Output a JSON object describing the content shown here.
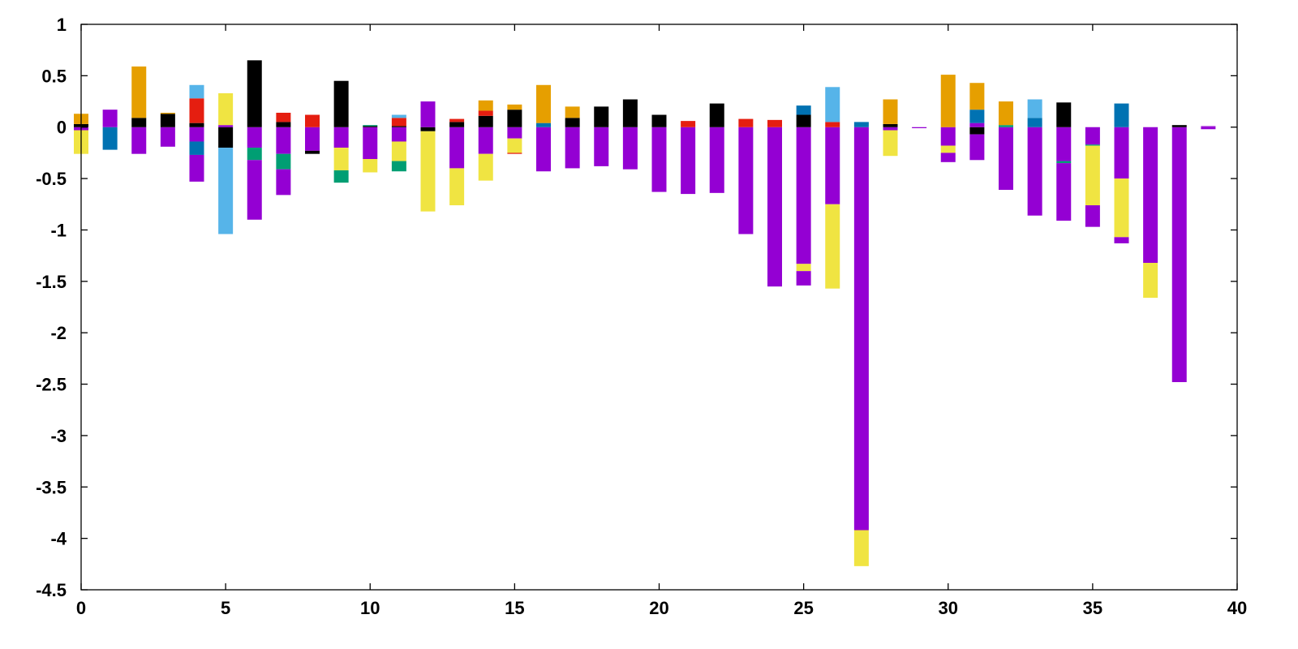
{
  "chart_data": {
    "type": "bar",
    "stacked": true,
    "title": "",
    "xlabel": "",
    "ylabel": "",
    "xlim": [
      0,
      40
    ],
    "ylim": [
      -4.5,
      1
    ],
    "grid": false,
    "legend": "none",
    "x_ticks": [
      "0",
      "5",
      "10",
      "15",
      "20",
      "25",
      "30",
      "35",
      "40"
    ],
    "y_ticks": [
      "1",
      "0.5",
      "0",
      "-0.5",
      "-1",
      "-1.5",
      "-2",
      "-2.5",
      "-3",
      "-3.5",
      "-4",
      "-4.5"
    ],
    "x_tick_values": [
      0,
      5,
      10,
      15,
      20,
      25,
      30,
      35,
      40
    ],
    "y_tick_values": [
      1,
      0.5,
      0,
      -0.5,
      -1,
      -1.5,
      -2,
      -2.5,
      -3,
      -3.5,
      -4,
      -4.5
    ],
    "colors": {
      "purple": "#9400d3",
      "teal": "#009e73",
      "skyblue": "#56b4e9",
      "orange": "#e69f00",
      "yellow": "#f0e442",
      "blue": "#0072b2",
      "red": "#e51e10",
      "black": "#000000"
    },
    "bars": [
      {
        "x": 0,
        "segments": [
          [
            "purple",
            -0.03,
            0
          ],
          [
            "yellow",
            -0.26,
            -0.03
          ],
          [
            "black",
            0,
            0.03
          ],
          [
            "orange",
            0.03,
            0.13
          ]
        ]
      },
      {
        "x": 1,
        "segments": [
          [
            "blue",
            -0.22,
            0
          ],
          [
            "purple",
            0,
            0.17
          ]
        ]
      },
      {
        "x": 2,
        "segments": [
          [
            "purple",
            -0.26,
            0
          ],
          [
            "black",
            0,
            0.09
          ],
          [
            "orange",
            0.09,
            0.59
          ]
        ]
      },
      {
        "x": 3,
        "segments": [
          [
            "purple",
            -0.19,
            0
          ],
          [
            "black",
            0,
            0.13
          ],
          [
            "orange",
            0.13,
            0.14
          ]
        ]
      },
      {
        "x": 4,
        "segments": [
          [
            "purple",
            -0.14,
            0
          ],
          [
            "blue",
            -0.27,
            -0.14
          ],
          [
            "purple",
            -0.53,
            -0.27
          ],
          [
            "black",
            0,
            0.04
          ],
          [
            "red",
            0.04,
            0.28
          ],
          [
            "skyblue",
            0.28,
            0.41
          ]
        ]
      },
      {
        "x": 5,
        "segments": [
          [
            "black",
            -0.2,
            0
          ],
          [
            "skyblue",
            -1.04,
            -0.2
          ],
          [
            "purple",
            0,
            0.02
          ],
          [
            "yellow",
            0.02,
            0.33
          ]
        ]
      },
      {
        "x": 6,
        "segments": [
          [
            "purple",
            -0.2,
            0
          ],
          [
            "teal",
            -0.32,
            -0.2
          ],
          [
            "purple",
            -0.9,
            -0.32
          ],
          [
            "black",
            0,
            0.65
          ]
        ]
      },
      {
        "x": 7,
        "segments": [
          [
            "purple",
            -0.26,
            0
          ],
          [
            "teal",
            -0.41,
            -0.26
          ],
          [
            "purple",
            -0.66,
            -0.41
          ],
          [
            "black",
            0,
            0.05
          ],
          [
            "red",
            0.05,
            0.14
          ]
        ]
      },
      {
        "x": 8,
        "segments": [
          [
            "purple",
            -0.23,
            0
          ],
          [
            "black",
            -0.26,
            -0.23
          ],
          [
            "red",
            0,
            0.12
          ]
        ]
      },
      {
        "x": 9,
        "segments": [
          [
            "purple",
            -0.2,
            0
          ],
          [
            "yellow",
            -0.42,
            -0.2
          ],
          [
            "teal",
            -0.54,
            -0.42
          ],
          [
            "black",
            0,
            0.45
          ]
        ]
      },
      {
        "x": 10,
        "segments": [
          [
            "purple",
            -0.31,
            0
          ],
          [
            "yellow",
            -0.44,
            -0.31
          ],
          [
            "black",
            0,
            0.01
          ],
          [
            "teal",
            0.01,
            0.02
          ]
        ]
      },
      {
        "x": 11,
        "segments": [
          [
            "purple",
            -0.14,
            0
          ],
          [
            "yellow",
            -0.33,
            -0.14
          ],
          [
            "teal",
            -0.43,
            -0.33
          ],
          [
            "black",
            0,
            0.01
          ],
          [
            "red",
            0.01,
            0.09
          ],
          [
            "skyblue",
            0.09,
            0.12
          ]
        ]
      },
      {
        "x": 12,
        "segments": [
          [
            "black",
            -0.04,
            0
          ],
          [
            "yellow",
            -0.82,
            -0.04
          ],
          [
            "purple",
            0,
            0.25
          ]
        ]
      },
      {
        "x": 13,
        "segments": [
          [
            "purple",
            -0.4,
            0
          ],
          [
            "yellow",
            -0.76,
            -0.4
          ],
          [
            "black",
            0,
            0.05
          ],
          [
            "red",
            0.05,
            0.08
          ]
        ]
      },
      {
        "x": 14,
        "segments": [
          [
            "purple",
            -0.26,
            0
          ],
          [
            "yellow",
            -0.52,
            -0.26
          ],
          [
            "black",
            0,
            0.11
          ],
          [
            "red",
            0.11,
            0.16
          ],
          [
            "orange",
            0.16,
            0.26
          ]
        ]
      },
      {
        "x": 15,
        "segments": [
          [
            "purple",
            -0.11,
            0
          ],
          [
            "yellow",
            -0.25,
            -0.11
          ],
          [
            "red",
            -0.26,
            -0.25
          ],
          [
            "black",
            0,
            0.17
          ],
          [
            "orange",
            0.17,
            0.22
          ]
        ]
      },
      {
        "x": 16,
        "segments": [
          [
            "purple",
            -0.43,
            0
          ],
          [
            "blue",
            0,
            0.04
          ],
          [
            "orange",
            0.04,
            0.41
          ]
        ]
      },
      {
        "x": 17,
        "segments": [
          [
            "purple",
            -0.4,
            0
          ],
          [
            "black",
            0,
            0.09
          ],
          [
            "orange",
            0.09,
            0.2
          ]
        ]
      },
      {
        "x": 18,
        "segments": [
          [
            "purple",
            -0.38,
            0
          ],
          [
            "black",
            0,
            0.2
          ]
        ]
      },
      {
        "x": 19,
        "segments": [
          [
            "purple",
            -0.41,
            0
          ],
          [
            "black",
            0,
            0.27
          ]
        ]
      },
      {
        "x": 20,
        "segments": [
          [
            "purple",
            -0.63,
            0
          ],
          [
            "black",
            0,
            0.12
          ]
        ]
      },
      {
        "x": 21,
        "segments": [
          [
            "purple",
            -0.65,
            0
          ],
          [
            "red",
            0,
            0.06
          ]
        ]
      },
      {
        "x": 22,
        "segments": [
          [
            "purple",
            -0.64,
            0
          ],
          [
            "black",
            0,
            0.23
          ]
        ]
      },
      {
        "x": 23,
        "segments": [
          [
            "purple",
            -1.04,
            0
          ],
          [
            "red",
            0,
            0.08
          ]
        ]
      },
      {
        "x": 24,
        "segments": [
          [
            "purple",
            -1.55,
            0
          ],
          [
            "red",
            0,
            0.07
          ]
        ]
      },
      {
        "x": 25,
        "segments": [
          [
            "purple",
            -1.33,
            0
          ],
          [
            "yellow",
            -1.4,
            -1.33
          ],
          [
            "purple",
            -1.54,
            -1.4
          ],
          [
            "black",
            0,
            0.12
          ],
          [
            "blue",
            0.12,
            0.21
          ]
        ]
      },
      {
        "x": 26,
        "segments": [
          [
            "purple",
            -0.75,
            0
          ],
          [
            "yellow",
            -1.57,
            -0.75
          ],
          [
            "red",
            0,
            0.05
          ],
          [
            "skyblue",
            0.05,
            0.39
          ]
        ]
      },
      {
        "x": 27,
        "segments": [
          [
            "purple",
            -3.92,
            0
          ],
          [
            "yellow",
            -4.27,
            -3.92
          ],
          [
            "blue",
            0,
            0.05
          ]
        ]
      },
      {
        "x": 28,
        "segments": [
          [
            "purple",
            -0.03,
            0
          ],
          [
            "yellow",
            -0.28,
            -0.03
          ],
          [
            "black",
            0,
            0.03
          ],
          [
            "orange",
            0.03,
            0.27
          ]
        ]
      },
      {
        "x": 29,
        "segments": [
          [
            "purple",
            -0.01,
            0
          ]
        ]
      },
      {
        "x": 30,
        "segments": [
          [
            "purple",
            -0.18,
            0
          ],
          [
            "yellow",
            -0.25,
            -0.18
          ],
          [
            "purple",
            -0.34,
            -0.25
          ],
          [
            "orange",
            0,
            0.51
          ]
        ]
      },
      {
        "x": 31,
        "segments": [
          [
            "black",
            -0.07,
            0
          ],
          [
            "purple",
            -0.32,
            -0.07
          ],
          [
            "purple",
            0,
            0.04
          ],
          [
            "blue",
            0.04,
            0.17
          ],
          [
            "orange",
            0.17,
            0.43
          ]
        ]
      },
      {
        "x": 32,
        "segments": [
          [
            "purple",
            -0.61,
            0
          ],
          [
            "teal",
            0,
            0.02
          ],
          [
            "orange",
            0.02,
            0.25
          ]
        ]
      },
      {
        "x": 33,
        "segments": [
          [
            "purple",
            -0.86,
            0
          ],
          [
            "blue",
            0,
            0.09
          ],
          [
            "skyblue",
            0.09,
            0.27
          ]
        ]
      },
      {
        "x": 34,
        "segments": [
          [
            "purple",
            -0.33,
            0
          ],
          [
            "teal",
            -0.35,
            -0.33
          ],
          [
            "purple",
            -0.91,
            -0.35
          ],
          [
            "black",
            0,
            0.24
          ]
        ]
      },
      {
        "x": 35,
        "segments": [
          [
            "purple",
            -0.17,
            0
          ],
          [
            "teal",
            -0.18,
            -0.17
          ],
          [
            "yellow",
            -0.76,
            -0.18
          ],
          [
            "purple",
            -0.97,
            -0.76
          ]
        ]
      },
      {
        "x": 36,
        "segments": [
          [
            "purple",
            -0.5,
            0
          ],
          [
            "yellow",
            -1.07,
            -0.5
          ],
          [
            "purple",
            -1.13,
            -1.07
          ],
          [
            "blue",
            0,
            0.23
          ]
        ]
      },
      {
        "x": 37,
        "segments": [
          [
            "purple",
            -1.32,
            0
          ],
          [
            "yellow",
            -1.66,
            -1.32
          ]
        ]
      },
      {
        "x": 38,
        "segments": [
          [
            "purple",
            -2.48,
            0
          ],
          [
            "black",
            0,
            0.02
          ]
        ]
      },
      {
        "x": 39,
        "segments": [
          [
            "purple",
            -0.02,
            0
          ],
          [
            "purple",
            0,
            0.01
          ]
        ]
      }
    ]
  }
}
